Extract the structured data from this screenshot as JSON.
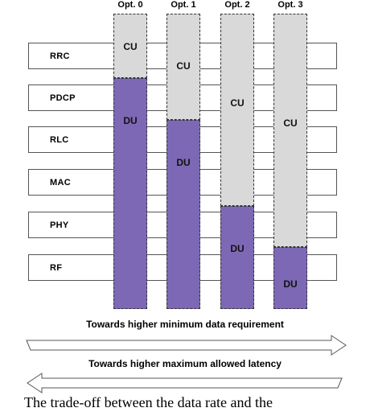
{
  "options": [
    {
      "title": "Opt. 0",
      "cu_label": "CU",
      "du_label": "DU"
    },
    {
      "title": "Opt. 1",
      "cu_label": "CU",
      "du_label": "DU"
    },
    {
      "title": "Opt. 2",
      "cu_label": "CU",
      "du_label": "DU"
    },
    {
      "title": "Opt. 3",
      "cu_label": "CU",
      "du_label": "DU"
    }
  ],
  "layers": [
    "RRC",
    "PDCP",
    "RLC",
    "MAC",
    "PHY",
    "RF"
  ],
  "arrows": {
    "right_label": "Towards higher minimum data requirement",
    "left_label": "Towards higher maximum allowed latency"
  },
  "caption": "The trade-off between the data rate and the"
}
